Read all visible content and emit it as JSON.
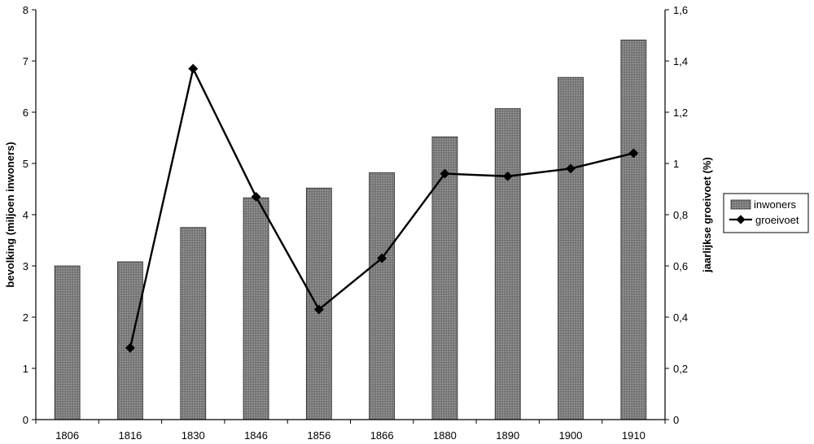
{
  "chart_data": {
    "type": "bar",
    "title": "",
    "categories": [
      "1806",
      "1816",
      "1830",
      "1846",
      "1856",
      "1866",
      "1880",
      "1890",
      "1900",
      "1910"
    ],
    "ylabel": "bevolking (miljoen inwoners)",
    "y2label": "jaarlijkse groeivoet (%)",
    "ylim": [
      0,
      8
    ],
    "y2lim": [
      0,
      1.6
    ],
    "yticks": [
      "0",
      "1",
      "2",
      "3",
      "4",
      "5",
      "6",
      "7",
      "8"
    ],
    "y2ticks": [
      "0",
      "0,2",
      "0,4",
      "0,6",
      "0,8",
      "1",
      "1,2",
      "1,4",
      "1,6"
    ],
    "grid": false,
    "legend_position": "right",
    "series": [
      {
        "name": "inwoners",
        "type": "bar",
        "axis": "left",
        "values": [
          3.0,
          3.08,
          3.75,
          4.33,
          4.52,
          4.82,
          5.52,
          6.07,
          6.68,
          7.41
        ]
      },
      {
        "name": "groeivoet",
        "type": "line",
        "axis": "right",
        "values": [
          null,
          0.28,
          1.37,
          0.87,
          0.43,
          0.63,
          0.96,
          0.95,
          0.98,
          1.04
        ]
      }
    ],
    "colors": {
      "bar_fill": "#8a8a8a",
      "bar_stroke": "#2a2a2a",
      "line": "#000000"
    }
  }
}
